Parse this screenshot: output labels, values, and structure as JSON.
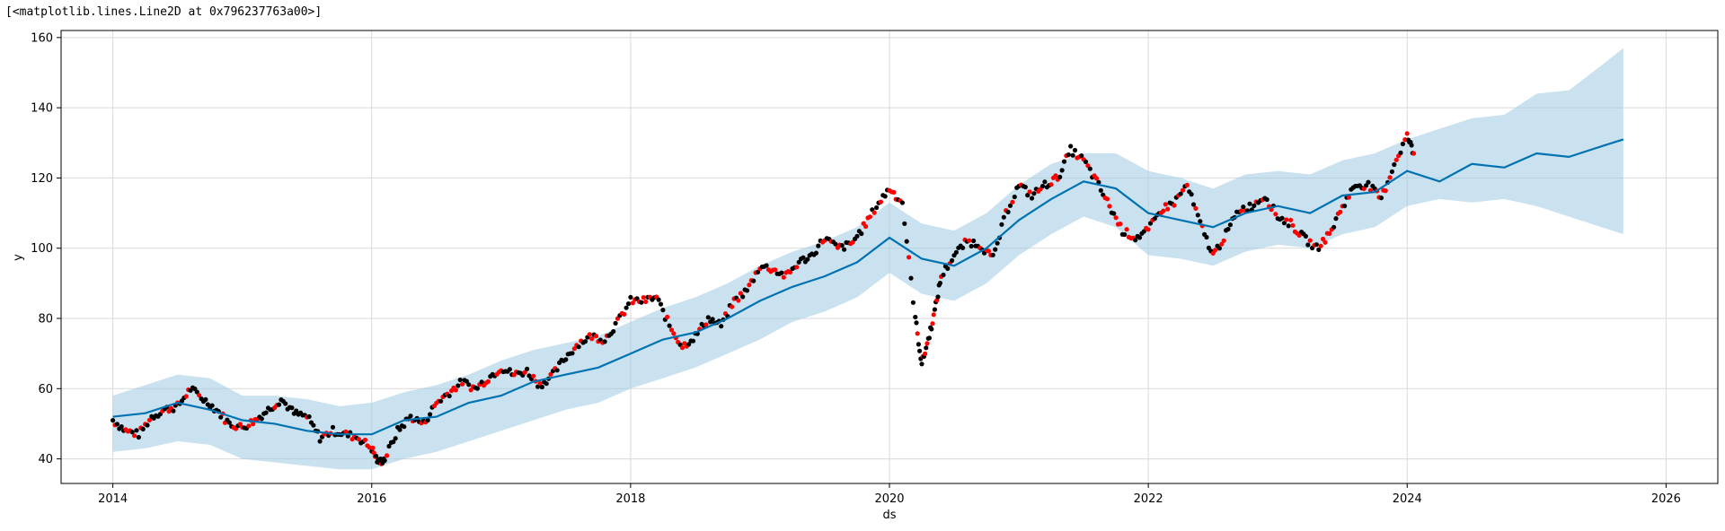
{
  "output_repr": "[<matplotlib.lines.Line2D at 0x796237763a00>]",
  "chart_data": {
    "type": "line",
    "title": "",
    "xlabel": "ds",
    "ylabel": "y",
    "xlim": [
      2013.6,
      2026.4
    ],
    "ylim": [
      33,
      162
    ],
    "x_ticks": [
      2014,
      2016,
      2018,
      2020,
      2022,
      2024,
      2026
    ],
    "y_ticks": [
      40,
      60,
      80,
      100,
      120,
      140,
      160
    ],
    "grid": true,
    "colors": {
      "forecast_line": "#0072B2",
      "uncertainty_band": "#9ecae1",
      "history_points": "#000000",
      "highlighted_points": "#ff0000"
    },
    "forecast": {
      "x": [
        2014.0,
        2014.25,
        2014.5,
        2014.75,
        2015.0,
        2015.25,
        2015.5,
        2015.75,
        2016.0,
        2016.25,
        2016.5,
        2016.75,
        2017.0,
        2017.25,
        2017.5,
        2017.75,
        2018.0,
        2018.25,
        2018.5,
        2018.75,
        2019.0,
        2019.25,
        2019.5,
        2019.75,
        2020.0,
        2020.25,
        2020.5,
        2020.75,
        2021.0,
        2021.25,
        2021.5,
        2021.75,
        2022.0,
        2022.25,
        2022.5,
        2022.75,
        2023.0,
        2023.25,
        2023.5,
        2023.75,
        2024.0,
        2024.25,
        2024.5,
        2024.75,
        2025.0,
        2025.25,
        2025.5,
        2025.67
      ],
      "yhat": [
        52,
        53,
        56,
        54,
        51,
        50,
        48,
        47,
        47,
        51,
        52,
        56,
        58,
        62,
        64,
        66,
        70,
        74,
        76,
        80,
        85,
        89,
        92,
        96,
        103,
        97,
        95,
        100,
        108,
        114,
        119,
        117,
        110,
        108,
        106,
        110,
        112,
        110,
        115,
        116,
        122,
        119,
        124,
        123,
        127,
        126,
        129,
        131
      ],
      "yhat_lower": [
        42,
        43,
        45,
        44,
        40,
        39,
        38,
        37,
        37,
        40,
        42,
        45,
        48,
        51,
        54,
        56,
        60,
        63,
        66,
        70,
        74,
        79,
        82,
        86,
        93,
        87,
        85,
        90,
        98,
        104,
        109,
        106,
        98,
        97,
        95,
        99,
        101,
        100,
        104,
        106,
        112,
        114,
        113,
        114,
        112,
        109,
        106,
        104
      ],
      "yhat_upper": [
        58,
        61,
        64,
        63,
        58,
        58,
        57,
        55,
        56,
        59,
        61,
        64,
        68,
        71,
        73,
        75,
        79,
        83,
        86,
        90,
        95,
        99,
        102,
        106,
        113,
        107,
        105,
        110,
        118,
        124,
        127,
        127,
        122,
        120,
        117,
        121,
        122,
        121,
        125,
        127,
        131,
        134,
        137,
        138,
        144,
        145,
        152,
        157
      ]
    },
    "history": {
      "x": [
        2014.0,
        2014.1,
        2014.2,
        2014.3,
        2014.4,
        2014.5,
        2014.6,
        2014.7,
        2014.8,
        2014.9,
        2015.0,
        2015.1,
        2015.2,
        2015.3,
        2015.4,
        2015.5,
        2015.6,
        2015.7,
        2015.8,
        2015.9,
        2016.0,
        2016.05,
        2016.1,
        2016.2,
        2016.3,
        2016.4,
        2016.5,
        2016.6,
        2016.7,
        2016.8,
        2016.9,
        2017.0,
        2017.1,
        2017.2,
        2017.3,
        2017.4,
        2017.5,
        2017.6,
        2017.7,
        2017.8,
        2017.9,
        2018.0,
        2018.1,
        2018.2,
        2018.3,
        2018.4,
        2018.5,
        2018.6,
        2018.7,
        2018.8,
        2018.9,
        2019.0,
        2019.1,
        2019.2,
        2019.3,
        2019.4,
        2019.5,
        2019.6,
        2019.7,
        2019.8,
        2019.9,
        2020.0,
        2020.1,
        2020.2,
        2020.25,
        2020.3,
        2020.35,
        2020.4,
        2020.5,
        2020.6,
        2020.7,
        2020.8,
        2020.9,
        2021.0,
        2021.1,
        2021.2,
        2021.3,
        2021.4,
        2021.5,
        2021.6,
        2021.7,
        2021.8,
        2021.9,
        2022.0,
        2022.1,
        2022.2,
        2022.3,
        2022.4,
        2022.5,
        2022.6,
        2022.7,
        2022.8,
        2022.9,
        2023.0,
        2023.1,
        2023.2,
        2023.3,
        2023.4,
        2023.5,
        2023.6,
        2023.7,
        2023.8,
        2023.9,
        2024.0,
        2024.05
      ],
      "y": [
        51,
        48,
        47,
        52,
        54,
        55,
        60,
        57,
        54,
        50,
        49,
        51,
        54,
        57,
        53,
        52,
        46,
        48,
        47,
        46,
        43,
        39,
        40,
        48,
        52,
        50,
        56,
        59,
        62,
        60,
        63,
        66,
        64,
        65,
        61,
        64,
        69,
        73,
        75,
        74,
        79,
        85,
        85,
        86,
        78,
        72,
        75,
        80,
        78,
        85,
        88,
        95,
        94,
        92,
        96,
        98,
        103,
        100,
        101,
        106,
        112,
        117,
        113,
        80,
        67,
        74,
        82,
        92,
        98,
        102,
        101,
        97,
        110,
        118,
        115,
        118,
        120,
        128,
        125,
        119,
        112,
        105,
        103,
        105,
        111,
        113,
        118,
        107,
        98,
        104,
        111,
        112,
        115,
        109,
        107,
        103,
        100,
        104,
        112,
        118,
        118,
        114,
        124,
        132,
        127
      ]
    }
  }
}
